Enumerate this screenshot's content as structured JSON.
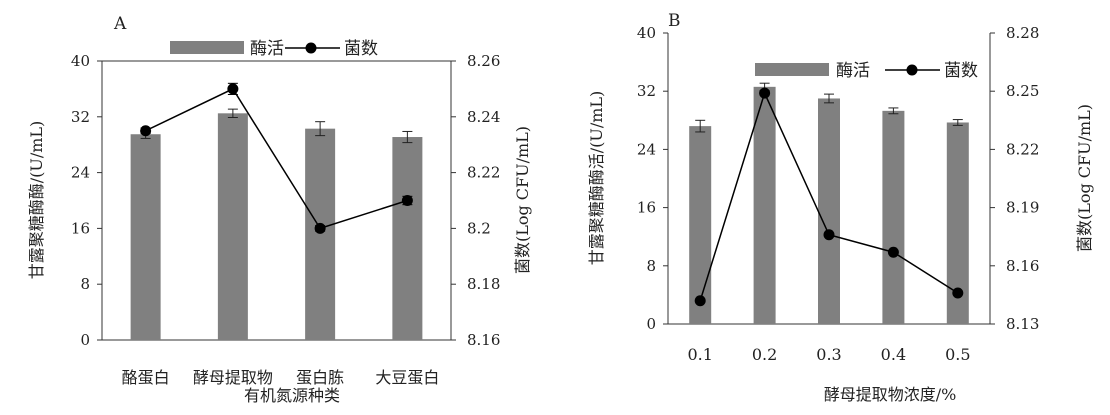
{
  "chart_data": [
    {
      "panel": "A",
      "type": "bar",
      "xlabel": "有机氮源种类",
      "ylabel": "甘露聚糖酶酶/(U/mL)",
      "y2label": "菌数(Log CFU/mL)",
      "categories": [
        "酪蛋白",
        "酵母提取物",
        "蛋白胨",
        "大豆蛋白"
      ],
      "ylim": [
        0,
        40
      ],
      "yticks": [
        0,
        8,
        16,
        24,
        32,
        40
      ],
      "y2lim": [
        8.16,
        8.26
      ],
      "y2ticks": [
        8.16,
        8.18,
        8.2,
        8.22,
        8.24,
        8.26
      ],
      "y2ticklabels": [
        "8.16",
        "8.18",
        "8.2",
        "8.22",
        "8.24",
        "8.26"
      ],
      "series": [
        {
          "name": "酶活",
          "kind": "bar",
          "axis": "left",
          "values": [
            29.5,
            32.5,
            30.3,
            29.1
          ],
          "errors": [
            0.6,
            0.6,
            1.0,
            0.8
          ]
        },
        {
          "name": "菌数",
          "kind": "line",
          "axis": "right",
          "values": [
            8.235,
            8.25,
            8.2,
            8.21
          ],
          "errors": [
            0.001,
            0.002,
            0.001,
            0.0015
          ]
        }
      ],
      "legend": "top",
      "grid": false
    },
    {
      "panel": "B",
      "type": "bar",
      "xlabel": "酵母提取物浓度/%",
      "ylabel": "甘露聚糖酶酶活/(U/mL)",
      "y2label": "菌数(Log CFU/mL)",
      "categories": [
        "0.1",
        "0.2",
        "0.3",
        "0.4",
        "0.5"
      ],
      "ylim": [
        0,
        40
      ],
      "yticks": [
        0,
        8,
        16,
        24,
        32,
        40
      ],
      "y2lim": [
        8.13,
        8.28
      ],
      "y2ticks": [
        8.13,
        8.16,
        8.19,
        8.22,
        8.25,
        8.28
      ],
      "y2ticklabels": [
        "8.13",
        "8.16",
        "8.19",
        "8.22",
        "8.25",
        "8.28"
      ],
      "series": [
        {
          "name": "酶活",
          "kind": "bar",
          "axis": "left",
          "values": [
            27.2,
            32.6,
            31.0,
            29.3,
            27.7
          ],
          "errors": [
            0.8,
            0.5,
            0.6,
            0.4,
            0.4
          ]
        },
        {
          "name": "菌数",
          "kind": "line",
          "axis": "right",
          "values": [
            8.142,
            8.249,
            8.176,
            8.167,
            8.146
          ],
          "errors": [
            0,
            0.001,
            0,
            0,
            0
          ]
        }
      ],
      "legend": "top",
      "grid": false
    }
  ],
  "colors": {
    "bar": "#808080",
    "line": "#000000",
    "axis": "#333333"
  }
}
